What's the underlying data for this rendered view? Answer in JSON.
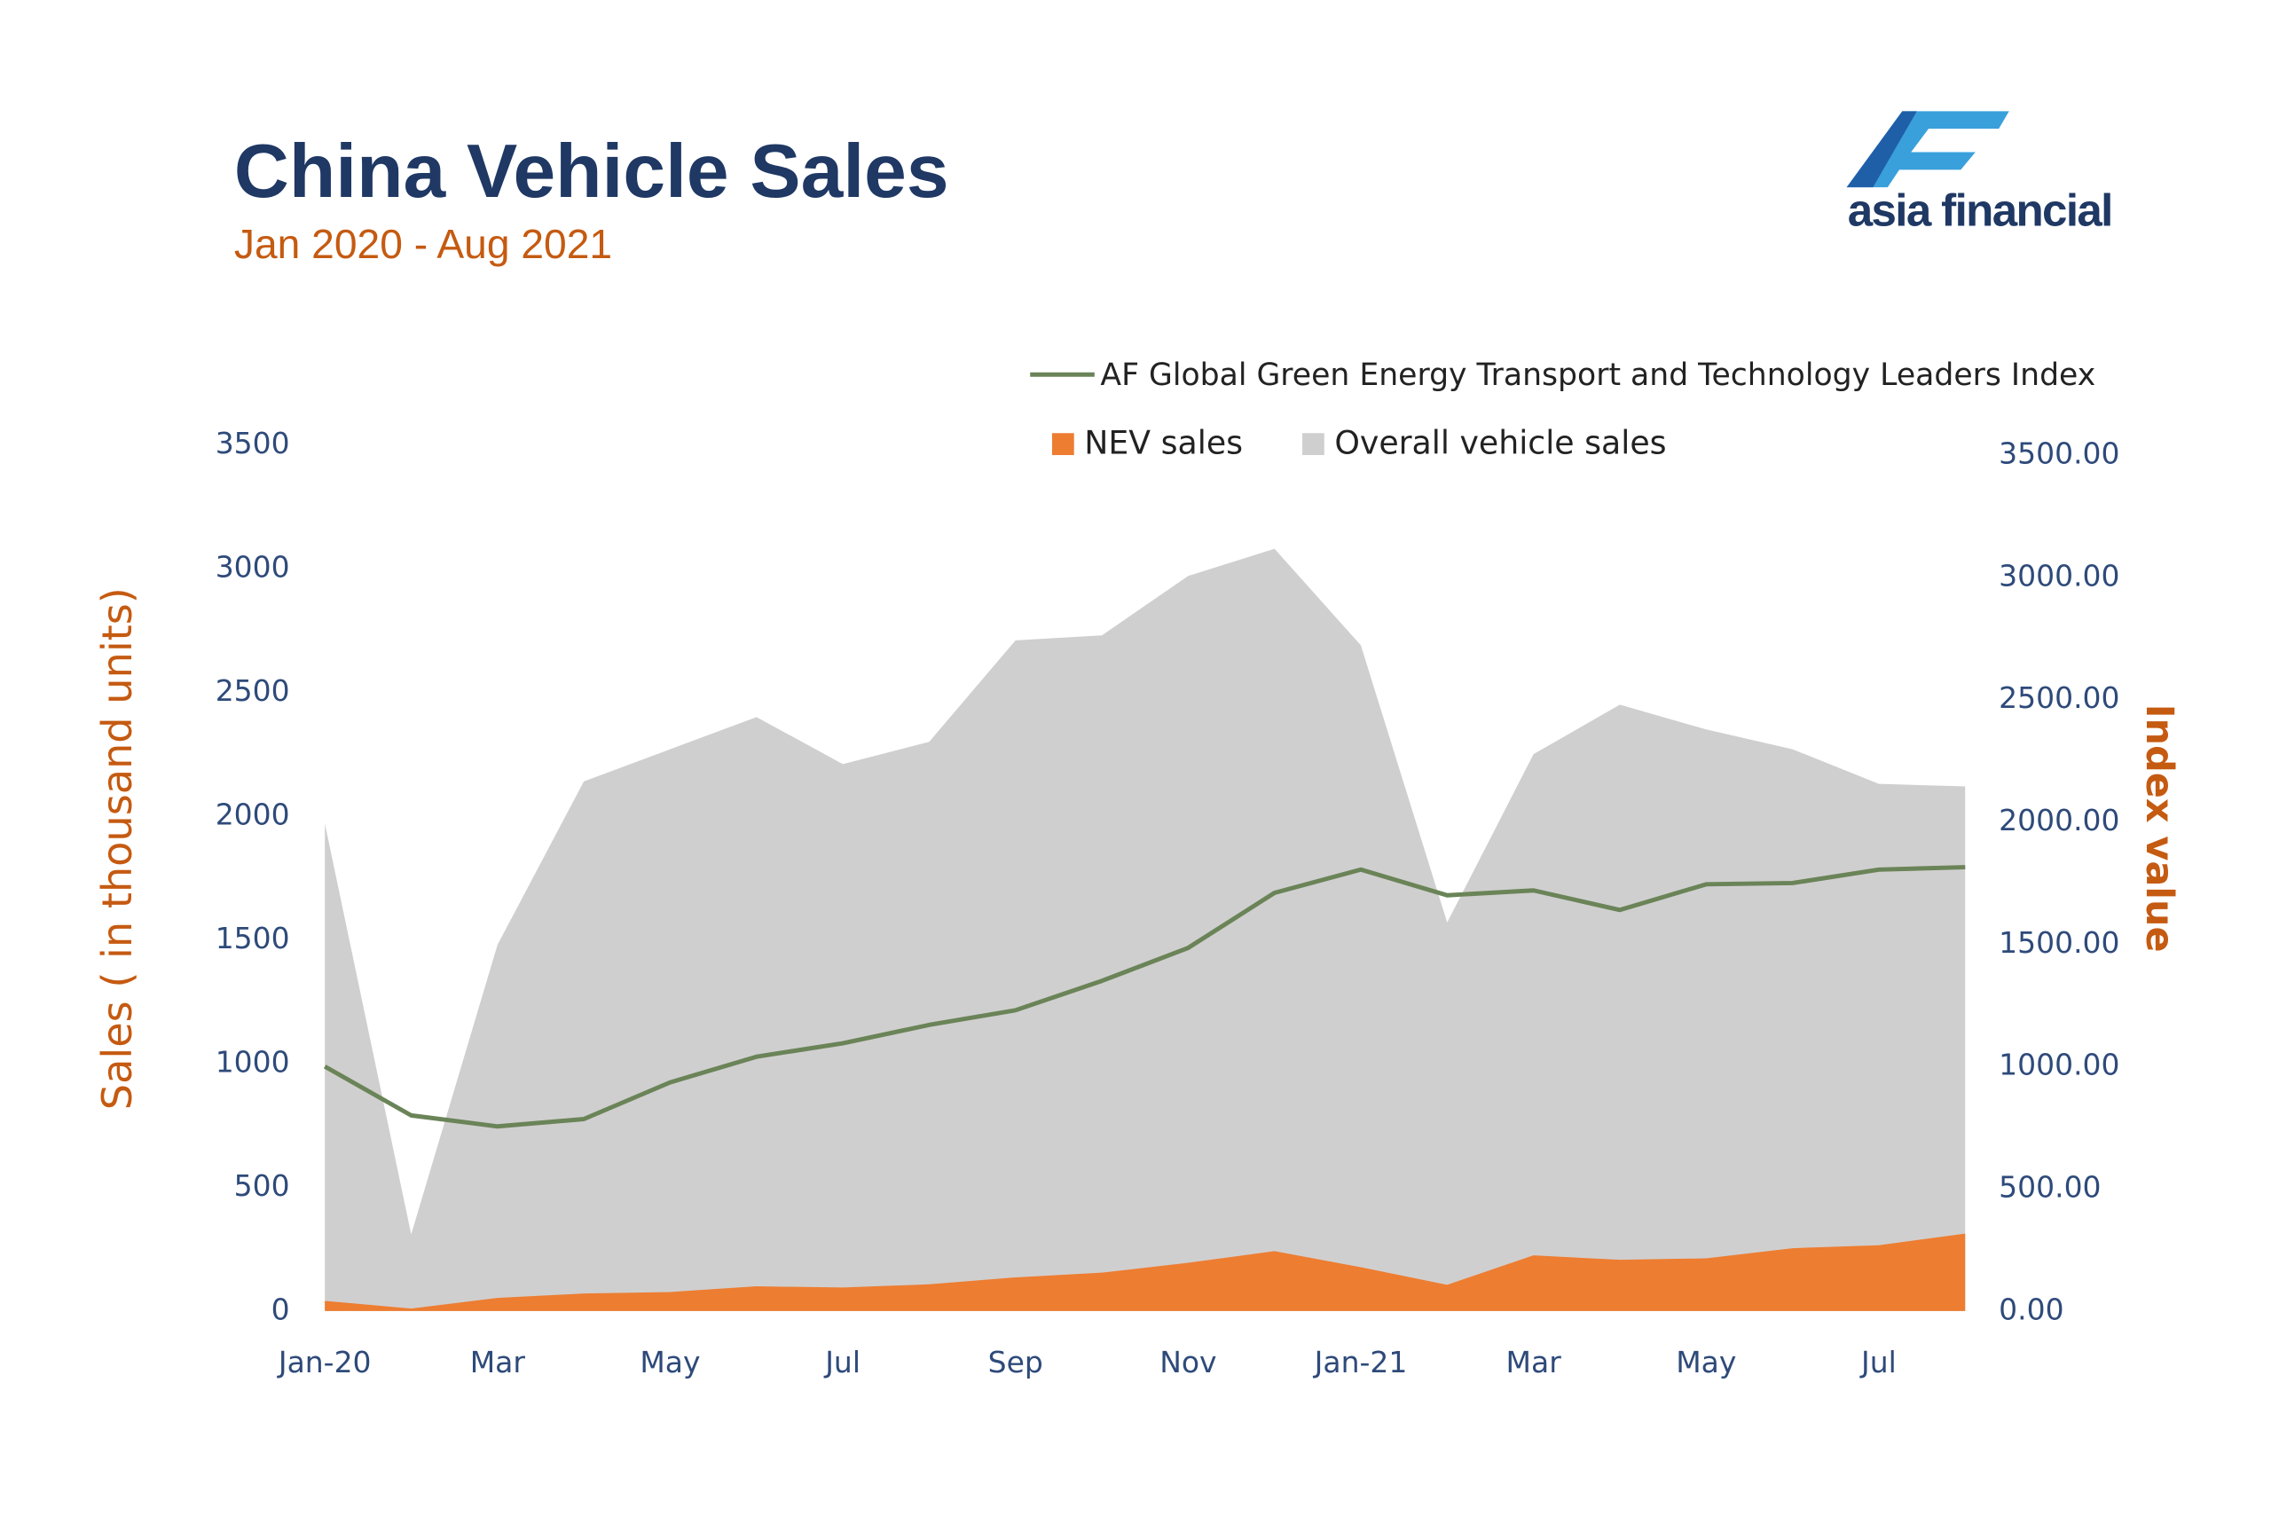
{
  "logo": "asia financial",
  "chart_data": {
    "type": "area",
    "title": "China Vehicle Sales",
    "subtitle": "Jan 2020 - Aug 2021",
    "ylabel": "Sales ( in thousand units)",
    "y2label": "Index value",
    "categories": [
      "Jan-20",
      null,
      "Mar",
      null,
      "May",
      null,
      "Jul",
      null,
      "Sep",
      null,
      "Nov",
      null,
      "Jan-21",
      null,
      "Mar",
      null,
      "May",
      null,
      "Jul",
      null
    ],
    "series": [
      {
        "name": "Overall vehicle sales",
        "type": "area",
        "color": "#d0cfcf",
        "values": [
          1970,
          310,
          1480,
          2140,
          2270,
          2400,
          2210,
          2300,
          2710,
          2730,
          2970,
          3080,
          2690,
          1570,
          2250,
          2450,
          2350,
          2270,
          2130,
          2120
        ]
      },
      {
        "name": "NEV sales",
        "type": "area",
        "color": "#ed7d31",
        "values": [
          41,
          10,
          53,
          71,
          77,
          100,
          95,
          108,
          136,
          155,
          195,
          242,
          177,
          106,
          225,
          207,
          213,
          254,
          266,
          313
        ]
      },
      {
        "name": "AF Global Green Energy Transport and Technology Leaders Index",
        "type": "line",
        "axis": "y2",
        "color": "#6a8458",
        "values": [
          1000,
          800,
          755,
          785,
          935,
          1040,
          1095,
          1170,
          1230,
          1350,
          1485,
          1710,
          1805,
          1700,
          1720,
          1640,
          1745,
          1750,
          1805,
          1815
        ]
      }
    ],
    "ylim": [
      0,
      3500
    ],
    "yticks": [
      0,
      500,
      1000,
      1500,
      2000,
      2500,
      3000,
      3500
    ],
    "y2lim": [
      0,
      3500
    ],
    "y2ticks": [
      {
        "value": 0,
        "label": "0.00"
      },
      {
        "value": 500,
        "label": "500.00"
      },
      {
        "value": 1000,
        "label": "1000.00"
      },
      {
        "value": 1500,
        "label": "1500.00"
      },
      {
        "value": 2000,
        "label": "2000.00"
      },
      {
        "value": 2500,
        "label": "2500.00"
      },
      {
        "value": 3000,
        "label": "3000.00"
      },
      {
        "value": 3500,
        "label": "3500.00"
      }
    ],
    "grid": false
  }
}
